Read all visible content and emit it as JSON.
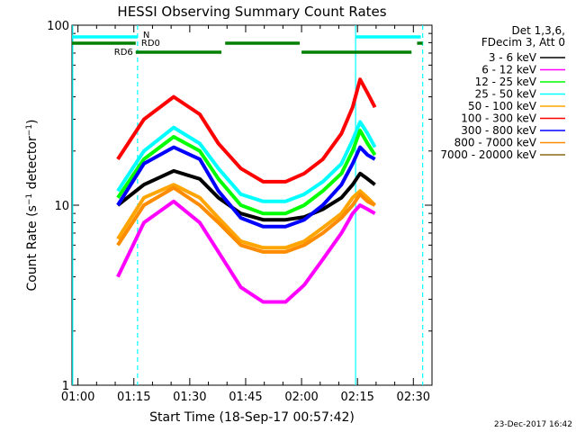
{
  "chart_data": {
    "type": "line",
    "title": "HESSI Observing Summary Count Rates",
    "xlabel": "Start Time (18-Sep-17 00:57:42)",
    "ylabel": "Count Rate (s⁻¹ detector⁻¹)",
    "ylabel_main": "Count Rate (s",
    "ylabel_sup1": "−1",
    "ylabel_mid": " detector",
    "ylabel_sup2": "−1",
    "ylabel_end": ")",
    "yscale": "log",
    "ylim": [
      1,
      100
    ],
    "xlim_minutes": [
      0.7,
      97.3
    ],
    "x_ticks": [
      {
        "label": "01:00",
        "minutes": 2.3
      },
      {
        "label": "01:15",
        "minutes": 17.3
      },
      {
        "label": "01:30",
        "minutes": 32.3
      },
      {
        "label": "01:45",
        "minutes": 47.3
      },
      {
        "label": "02:00",
        "minutes": 62.3
      },
      {
        "label": "02:15",
        "minutes": 77.3
      },
      {
        "label": "02:30",
        "minutes": 92.3
      }
    ],
    "y_ticks": [
      {
        "label": "100",
        "value": 100
      },
      {
        "label": "10",
        "value": 10
      },
      {
        "label": "1",
        "value": 1
      }
    ],
    "legend_header": [
      "Det 1,3,6,",
      "FDecim 3, Att 0"
    ],
    "series": [
      {
        "name": "3 - 6 keV",
        "color": "#000000",
        "x": [
          13,
          20,
          28,
          35,
          40,
          46,
          52,
          58,
          63,
          68,
          73,
          76,
          78,
          80,
          82
        ],
        "values": [
          10,
          13,
          15.5,
          14,
          11,
          9.0,
          8.3,
          8.3,
          8.6,
          9.5,
          11,
          13,
          15,
          14,
          13
        ]
      },
      {
        "name": "6 - 12 keV",
        "color": "#ff00ff",
        "x": [
          13,
          20,
          28,
          35,
          40,
          46,
          52,
          58,
          63,
          68,
          73,
          76,
          78,
          80,
          82
        ],
        "values": [
          4.0,
          8.0,
          10.5,
          8.0,
          5.5,
          3.5,
          2.9,
          2.9,
          3.6,
          5.0,
          7.0,
          9.0,
          10,
          9.5,
          9.0
        ]
      },
      {
        "name": "12 - 25 keV",
        "color": "#00ff00",
        "x": [
          13,
          20,
          28,
          35,
          40,
          46,
          52,
          58,
          63,
          68,
          73,
          76,
          78,
          80,
          82
        ],
        "values": [
          11,
          18,
          24,
          20,
          14,
          10,
          9.0,
          9.0,
          10,
          12,
          15,
          20,
          26,
          22,
          19
        ]
      },
      {
        "name": "25 - 50 keV",
        "color": "#00ffff",
        "x": [
          13,
          20,
          28,
          35,
          40,
          46,
          52,
          58,
          63,
          68,
          73,
          76,
          78,
          80,
          82
        ],
        "values": [
          12,
          20,
          27,
          22,
          16,
          11.5,
          10.5,
          10.5,
          11.5,
          13.5,
          17,
          23,
          29,
          25,
          21
        ]
      },
      {
        "name": "50 - 100 keV",
        "color": "#ffa500",
        "x": [
          13,
          20,
          28,
          35,
          40,
          46,
          52,
          58,
          63,
          68,
          73,
          76,
          78,
          80,
          82
        ],
        "values": [
          6.5,
          11,
          13,
          11,
          8.5,
          6.3,
          5.8,
          5.8,
          6.3,
          7.5,
          9.0,
          11,
          12,
          11,
          10
        ]
      },
      {
        "name": "100 - 300 keV",
        "color": "#ff0000",
        "x": [
          13,
          20,
          28,
          35,
          40,
          46,
          52,
          58,
          63,
          68,
          73,
          76,
          78,
          80,
          82
        ],
        "values": [
          18,
          30,
          40,
          32,
          22,
          16,
          13.5,
          13.5,
          15,
          18,
          25,
          35,
          50,
          42,
          35
        ]
      },
      {
        "name": "300 - 800 keV",
        "color": "#0000ff",
        "x": [
          13,
          20,
          28,
          35,
          40,
          46,
          52,
          58,
          63,
          68,
          73,
          76,
          78,
          80,
          82
        ],
        "values": [
          10,
          17,
          21,
          18,
          12,
          8.5,
          7.6,
          7.6,
          8.3,
          10,
          13,
          17,
          21,
          19,
          18
        ]
      },
      {
        "name": "800 - 7000 keV",
        "color": "#ff8c00",
        "x": [
          13,
          20,
          28,
          35,
          40,
          46,
          52,
          58,
          63,
          68,
          73,
          76,
          78,
          80,
          82
        ],
        "values": [
          6.0,
          10,
          12.5,
          10,
          8.0,
          6.0,
          5.5,
          5.5,
          6.0,
          7.0,
          8.5,
          10,
          11.5,
          10.5,
          10
        ]
      },
      {
        "name": "7000 - 20000 keV",
        "color": "#8b6914",
        "x": [],
        "values": []
      }
    ],
    "vertical_lines": [
      {
        "minutes": 0.9,
        "style": "solid",
        "color": "#00ffff"
      },
      {
        "minutes": 18.3,
        "style": "dashed",
        "color": "#00ffff"
      },
      {
        "minutes": 76.8,
        "style": "solid",
        "color": "#00ffff"
      },
      {
        "minutes": 94.8,
        "style": "dashed",
        "color": "#00ffff"
      }
    ],
    "flag_bars": [
      {
        "label": "N",
        "color": "#00ffff",
        "row": "top",
        "segments": [
          [
            0.7,
            18.3
          ],
          [
            76.8,
            94.3
          ]
        ]
      },
      {
        "label": "RD0",
        "color": "#008000",
        "row": "mid",
        "segments": [
          [
            0.7,
            17.8
          ],
          [
            41.8,
            61.8
          ],
          [
            93.3,
            94.8
          ]
        ]
      },
      {
        "label": "RD6",
        "color": "#008000",
        "row": "bottom",
        "segments": [
          [
            17.8,
            40.8
          ],
          [
            62.3,
            91.8
          ]
        ]
      }
    ]
  },
  "footer": {
    "timestamp": "23-Dec-2017 16:42"
  }
}
